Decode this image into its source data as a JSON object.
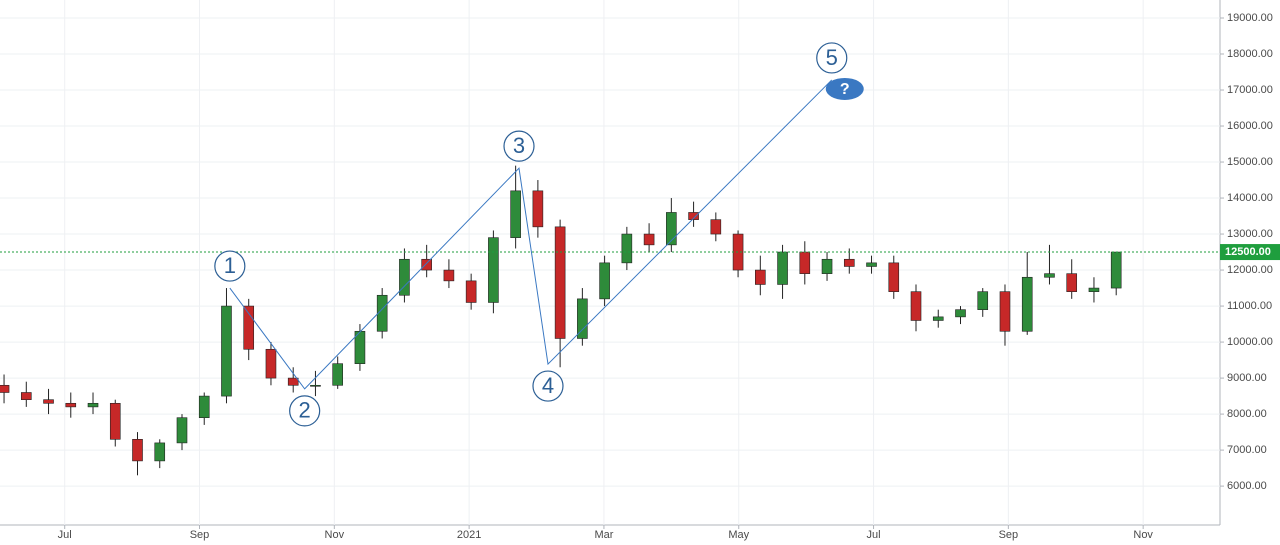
{
  "chart_data": {
    "type": "candlestick",
    "x": [
      0.1,
      0.43,
      0.76,
      1.09,
      1.42,
      1.75,
      2.08,
      2.41,
      2.74,
      3.07,
      3.4,
      3.73,
      4.06,
      4.39,
      4.72,
      5.05,
      5.38,
      5.71,
      6.04,
      6.37,
      6.7,
      7.03,
      7.36,
      7.69,
      8.02,
      8.35,
      8.68,
      9.01,
      9.34,
      9.67,
      10.0,
      10.33,
      10.66,
      10.99,
      11.32,
      11.65,
      11.98,
      12.31,
      12.64,
      12.97,
      13.3,
      13.63,
      13.96,
      14.29,
      14.62,
      14.95,
      15.28,
      15.61,
      15.94,
      16.27,
      16.6
    ],
    "open": [
      8800,
      8600,
      8400,
      8300,
      8200,
      8300,
      7300,
      6700,
      7200,
      7900,
      8500,
      11000,
      9800,
      9000,
      8800,
      8800,
      9400,
      10300,
      11300,
      12300,
      12000,
      11700,
      11100,
      12900,
      14200,
      13200,
      10100,
      11200,
      12200,
      13000,
      12700,
      13600,
      13400,
      13000,
      12000,
      11600,
      12500,
      11900,
      12300,
      12100,
      12200,
      11400,
      10600,
      10700,
      10900,
      11400,
      10300,
      11800,
      11900,
      11400,
      11500
    ],
    "high": [
      9100,
      8900,
      8700,
      8600,
      8600,
      8400,
      7500,
      7300,
      8000,
      8600,
      11500,
      11200,
      10000,
      9300,
      9200,
      9600,
      10500,
      11500,
      12600,
      12700,
      12300,
      11900,
      13100,
      14900,
      14500,
      13400,
      11500,
      12400,
      13200,
      13300,
      14000,
      13900,
      13600,
      13100,
      12400,
      12700,
      12800,
      12500,
      12600,
      12400,
      12400,
      11600,
      10900,
      11000,
      11500,
      11600,
      12500,
      12700,
      12300,
      11800,
      12500
    ],
    "low": [
      8300,
      8200,
      8000,
      7900,
      8000,
      7100,
      6300,
      6500,
      7000,
      7700,
      8300,
      9500,
      8800,
      8600,
      8500,
      8700,
      9200,
      10100,
      11100,
      11800,
      11500,
      10900,
      10800,
      12600,
      12900,
      9300,
      9900,
      11000,
      12000,
      12500,
      12500,
      13200,
      12800,
      11800,
      11300,
      11200,
      11600,
      11700,
      11900,
      11900,
      11200,
      10300,
      10400,
      10500,
      10700,
      9900,
      10200,
      11600,
      11200,
      11100,
      11300
    ],
    "close": [
      8600,
      8400,
      8300,
      8200,
      8300,
      7300,
      6700,
      7200,
      7900,
      8500,
      11000,
      9800,
      9000,
      8800,
      8800,
      9400,
      10300,
      11300,
      12300,
      12000,
      11700,
      11100,
      12900,
      14200,
      13200,
      10100,
      11200,
      12200,
      13000,
      12700,
      13600,
      13400,
      13000,
      12000,
      11600,
      12500,
      11900,
      12300,
      12100,
      12200,
      11400,
      10600,
      10700,
      10900,
      11400,
      10300,
      11800,
      11900,
      11400,
      11500,
      12500
    ],
    "up_color": "#2e8b3a",
    "down_color": "#c62828",
    "xlim": [
      0.04,
      18.14
    ],
    "ylim": [
      4920,
      19500
    ],
    "xticks": [
      {
        "value": 1,
        "label": "Jul"
      },
      {
        "value": 3,
        "label": "Sep"
      },
      {
        "value": 5,
        "label": "Nov"
      },
      {
        "value": 7,
        "label": "2021"
      },
      {
        "value": 9,
        "label": "Mar"
      },
      {
        "value": 11,
        "label": "May"
      },
      {
        "value": 13,
        "label": "Jul"
      },
      {
        "value": 15,
        "label": "Sep"
      },
      {
        "value": 17,
        "label": "Nov"
      }
    ],
    "yticks": [
      {
        "value": 6000,
        "label": "6000.00"
      },
      {
        "value": 7000,
        "label": "7000.00"
      },
      {
        "value": 8000,
        "label": "8000.00"
      },
      {
        "value": 9000,
        "label": "9000.00"
      },
      {
        "value": 10000,
        "label": "10000.00"
      },
      {
        "value": 11000,
        "label": "11000.00"
      },
      {
        "value": 12000,
        "label": "12000.00"
      },
      {
        "value": 13000,
        "label": "13000.00"
      },
      {
        "value": 14000,
        "label": "14000.00"
      },
      {
        "value": 15000,
        "label": "15000.00"
      },
      {
        "value": 16000,
        "label": "16000.00"
      },
      {
        "value": 17000,
        "label": "17000.00"
      },
      {
        "value": 18000,
        "label": "18000.00"
      },
      {
        "value": 19000,
        "label": "19000.00"
      }
    ],
    "grid": true,
    "waves": [
      {
        "label": "1",
        "x": 3.45,
        "y": 11500
      },
      {
        "label": "2",
        "x": 4.56,
        "y": 8700
      },
      {
        "label": "3",
        "x": 7.74,
        "y": 14830
      },
      {
        "label": "4",
        "x": 8.17,
        "y": 9390
      },
      {
        "label": "5",
        "x": 12.38,
        "y": 17280
      }
    ],
    "wave_color": "#3a78c2",
    "question_label": "?",
    "last_price": {
      "value": 12500,
      "label": "12500.00"
    },
    "last_price_color": "#1f9e3e"
  }
}
